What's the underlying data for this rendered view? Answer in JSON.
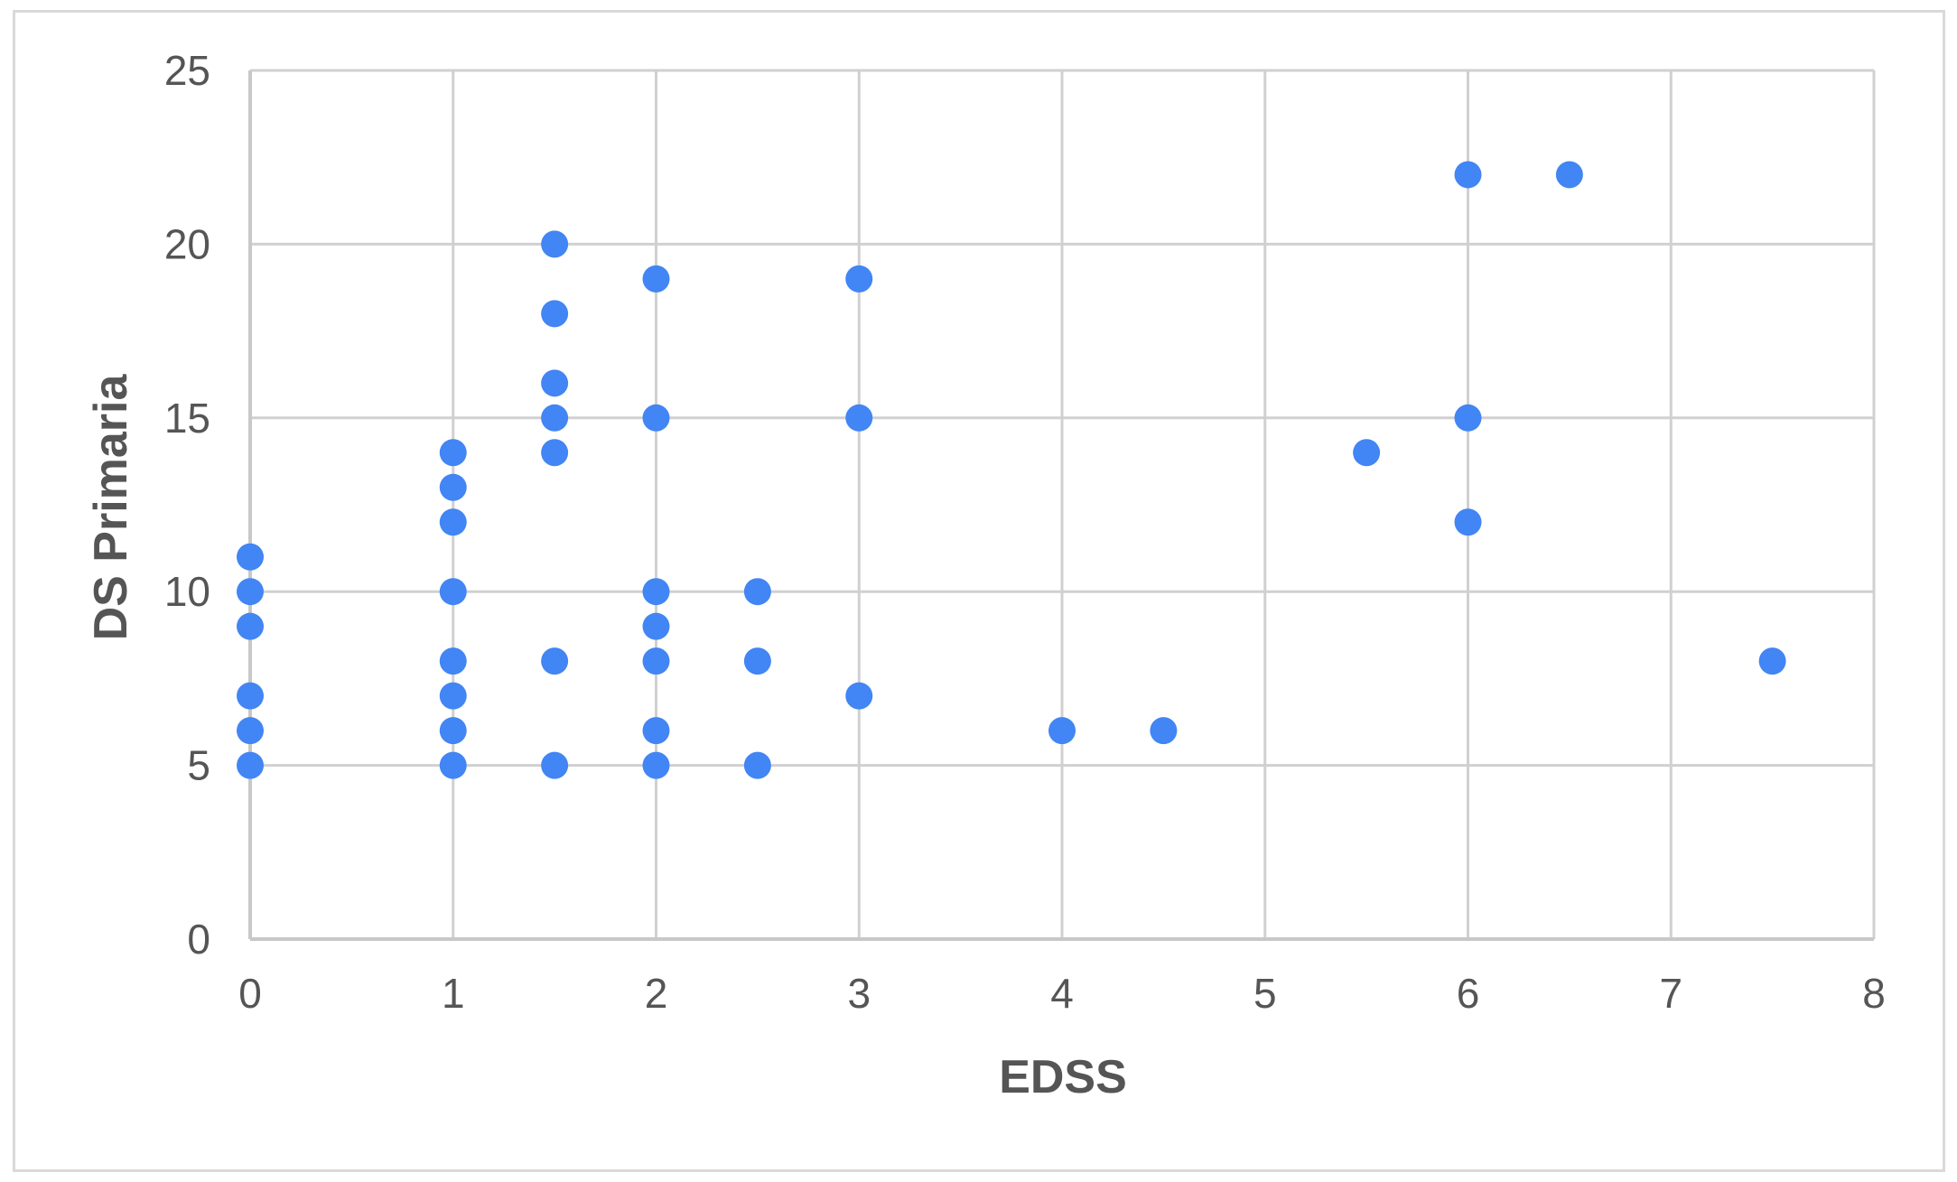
{
  "chart_data": {
    "type": "scatter",
    "xlabel": "EDSS",
    "ylabel": "DS Primaria",
    "xlim": [
      0,
      8
    ],
    "ylim": [
      0,
      25
    ],
    "xticks": [
      0,
      1,
      2,
      3,
      4,
      5,
      6,
      7,
      8
    ],
    "yticks": [
      0,
      5,
      10,
      15,
      20,
      25
    ],
    "grid": true,
    "legend": "none",
    "marker_color": "#4285f4",
    "series": [
      {
        "points": [
          {
            "x": 0,
            "y": 11
          },
          {
            "x": 0,
            "y": 10
          },
          {
            "x": 0,
            "y": 9
          },
          {
            "x": 0,
            "y": 7
          },
          {
            "x": 0,
            "y": 6
          },
          {
            "x": 0,
            "y": 5
          },
          {
            "x": 1,
            "y": 14
          },
          {
            "x": 1,
            "y": 13
          },
          {
            "x": 1,
            "y": 12
          },
          {
            "x": 1,
            "y": 10
          },
          {
            "x": 1,
            "y": 8
          },
          {
            "x": 1,
            "y": 7
          },
          {
            "x": 1,
            "y": 6
          },
          {
            "x": 1,
            "y": 5
          },
          {
            "x": 1.5,
            "y": 20
          },
          {
            "x": 1.5,
            "y": 18
          },
          {
            "x": 1.5,
            "y": 16
          },
          {
            "x": 1.5,
            "y": 15
          },
          {
            "x": 1.5,
            "y": 14
          },
          {
            "x": 1.5,
            "y": 8
          },
          {
            "x": 1.5,
            "y": 5
          },
          {
            "x": 2,
            "y": 19
          },
          {
            "x": 2,
            "y": 15
          },
          {
            "x": 2,
            "y": 10
          },
          {
            "x": 2,
            "y": 9
          },
          {
            "x": 2,
            "y": 8
          },
          {
            "x": 2,
            "y": 6
          },
          {
            "x": 2,
            "y": 5
          },
          {
            "x": 2.5,
            "y": 10
          },
          {
            "x": 2.5,
            "y": 8
          },
          {
            "x": 2.5,
            "y": 5
          },
          {
            "x": 3,
            "y": 19
          },
          {
            "x": 3,
            "y": 15
          },
          {
            "x": 3,
            "y": 7
          },
          {
            "x": 4,
            "y": 6
          },
          {
            "x": 4.5,
            "y": 6
          },
          {
            "x": 5.5,
            "y": 14
          },
          {
            "x": 6,
            "y": 22
          },
          {
            "x": 6,
            "y": 15
          },
          {
            "x": 6,
            "y": 12
          },
          {
            "x": 6.5,
            "y": 22
          },
          {
            "x": 7.5,
            "y": 8
          }
        ]
      }
    ]
  }
}
